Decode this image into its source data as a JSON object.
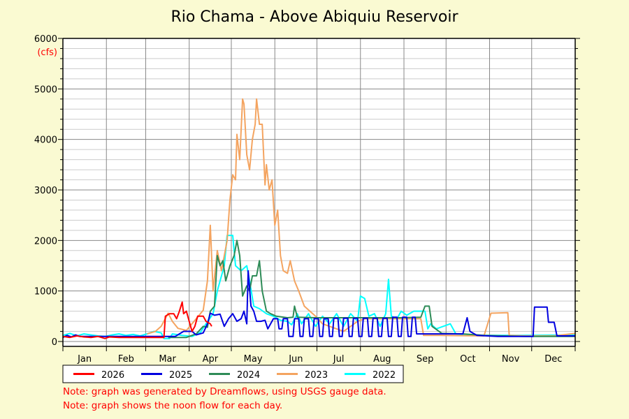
{
  "chart_data": {
    "type": "line",
    "title": "Rio Chama - Above Abiquiu Reservoir",
    "ylabel": "(cfs)",
    "xlabel": "",
    "ylim": [
      0,
      6000
    ],
    "xlim_days": [
      0,
      365
    ],
    "yticks": [
      "0",
      "1000",
      "2000",
      "3000",
      "4000",
      "5000",
      "6000"
    ],
    "ytick_values": [
      0,
      1000,
      2000,
      3000,
      4000,
      5000,
      6000
    ],
    "minor_grid_step": 200,
    "months": [
      "Jan",
      "Feb",
      "Mar",
      "Apr",
      "May",
      "Jun",
      "Jul",
      "Aug",
      "Sep",
      "Oct",
      "Nov",
      "Dec"
    ],
    "month_start_days": [
      0,
      31,
      59,
      90,
      120,
      151,
      181,
      212,
      243,
      273,
      304,
      334
    ],
    "grid": true,
    "legend_placement": "bottom",
    "series": [
      {
        "name": "2022",
        "color": "#00ffff",
        "points": [
          [
            0,
            120
          ],
          [
            5,
            160
          ],
          [
            10,
            110
          ],
          [
            15,
            150
          ],
          [
            20,
            130
          ],
          [
            25,
            110
          ],
          [
            30,
            100
          ],
          [
            35,
            130
          ],
          [
            40,
            150
          ],
          [
            45,
            120
          ],
          [
            50,
            140
          ],
          [
            55,
            110
          ],
          [
            60,
            150
          ],
          [
            65,
            200
          ],
          [
            70,
            170
          ],
          [
            72,
            60
          ],
          [
            76,
            60
          ],
          [
            78,
            150
          ],
          [
            85,
            120
          ],
          [
            92,
            100
          ],
          [
            98,
            180
          ],
          [
            102,
            350
          ],
          [
            107,
            550
          ],
          [
            110,
            1000
          ],
          [
            113,
            1300
          ],
          [
            115,
            1500
          ],
          [
            117,
            2100
          ],
          [
            121,
            2100
          ],
          [
            123,
            1500
          ],
          [
            127,
            1400
          ],
          [
            131,
            1500
          ],
          [
            133,
            1200
          ],
          [
            136,
            700
          ],
          [
            140,
            650
          ],
          [
            145,
            550
          ],
          [
            150,
            500
          ],
          [
            155,
            420
          ],
          [
            160,
            400
          ],
          [
            163,
            330
          ],
          [
            167,
            550
          ],
          [
            170,
            350
          ],
          [
            175,
            550
          ],
          [
            180,
            300
          ],
          [
            185,
            500
          ],
          [
            190,
            350
          ],
          [
            195,
            550
          ],
          [
            200,
            300
          ],
          [
            205,
            550
          ],
          [
            210,
            400
          ],
          [
            212,
            900
          ],
          [
            215,
            850
          ],
          [
            218,
            500
          ],
          [
            222,
            550
          ],
          [
            226,
            300
          ],
          [
            230,
            550
          ],
          [
            232,
            1230
          ],
          [
            234,
            500
          ],
          [
            238,
            450
          ],
          [
            241,
            600
          ],
          [
            245,
            520
          ],
          [
            250,
            600
          ],
          [
            256,
            600
          ],
          [
            258,
            600
          ],
          [
            260,
            250
          ],
          [
            262,
            350
          ],
          [
            266,
            250
          ],
          [
            276,
            350
          ],
          [
            280,
            150
          ],
          [
            300,
            120
          ],
          [
            330,
            120
          ],
          [
            365,
            130
          ]
        ]
      },
      {
        "name": "2023",
        "color": "#f4a460",
        "points": [
          [
            60,
            150
          ],
          [
            66,
            200
          ],
          [
            70,
            300
          ],
          [
            75,
            560
          ],
          [
            78,
            400
          ],
          [
            82,
            260
          ],
          [
            88,
            220
          ],
          [
            95,
            450
          ],
          [
            100,
            620
          ],
          [
            103,
            1200
          ],
          [
            105,
            2300
          ],
          [
            107,
            1000
          ],
          [
            110,
            1800
          ],
          [
            113,
            1400
          ],
          [
            117,
            2000
          ],
          [
            119,
            2800
          ],
          [
            121,
            3300
          ],
          [
            123,
            3200
          ],
          [
            124,
            4100
          ],
          [
            126,
            3600
          ],
          [
            128,
            4800
          ],
          [
            129,
            4700
          ],
          [
            131,
            3700
          ],
          [
            133,
            3400
          ],
          [
            135,
            4000
          ],
          [
            137,
            4300
          ],
          [
            138,
            4800
          ],
          [
            140,
            4300
          ],
          [
            142,
            4300
          ],
          [
            144,
            3100
          ],
          [
            145,
            3500
          ],
          [
            147,
            3000
          ],
          [
            149,
            3200
          ],
          [
            151,
            2300
          ],
          [
            153,
            2600
          ],
          [
            155,
            1700
          ],
          [
            157,
            1400
          ],
          [
            160,
            1350
          ],
          [
            162,
            1600
          ],
          [
            165,
            1200
          ],
          [
            168,
            1000
          ],
          [
            172,
            700
          ],
          [
            176,
            600
          ],
          [
            180,
            500
          ],
          [
            185,
            350
          ],
          [
            190,
            300
          ],
          [
            195,
            250
          ],
          [
            200,
            200
          ],
          [
            205,
            300
          ],
          [
            210,
            400
          ],
          [
            215,
            450
          ],
          [
            230,
            450
          ],
          [
            245,
            450
          ],
          [
            255,
            450
          ],
          [
            257,
            120
          ],
          [
            270,
            120
          ],
          [
            300,
            110
          ],
          [
            305,
            560
          ],
          [
            317,
            570
          ],
          [
            318,
            120
          ],
          [
            330,
            110
          ],
          [
            350,
            110
          ],
          [
            365,
            160
          ]
        ]
      },
      {
        "name": "2024",
        "color": "#2e8b57",
        "points": [
          [
            75,
            80
          ],
          [
            88,
            80
          ],
          [
            95,
            150
          ],
          [
            100,
            300
          ],
          [
            103,
            280
          ],
          [
            105,
            600
          ],
          [
            108,
            700
          ],
          [
            110,
            1700
          ],
          [
            112,
            1500
          ],
          [
            114,
            1600
          ],
          [
            116,
            1200
          ],
          [
            119,
            1500
          ],
          [
            122,
            1700
          ],
          [
            124,
            2000
          ],
          [
            126,
            1700
          ],
          [
            128,
            900
          ],
          [
            131,
            1100
          ],
          [
            133,
            1000
          ],
          [
            135,
            1300
          ],
          [
            138,
            1300
          ],
          [
            140,
            1600
          ],
          [
            142,
            1000
          ],
          [
            145,
            600
          ],
          [
            148,
            550
          ],
          [
            152,
            500
          ],
          [
            160,
            470
          ],
          [
            164,
            480
          ],
          [
            165,
            700
          ],
          [
            167,
            480
          ],
          [
            180,
            470
          ],
          [
            200,
            470
          ],
          [
            220,
            470
          ],
          [
            240,
            470
          ],
          [
            255,
            480
          ],
          [
            258,
            700
          ],
          [
            261,
            700
          ],
          [
            263,
            300
          ],
          [
            270,
            160
          ],
          [
            285,
            150
          ],
          [
            300,
            120
          ],
          [
            330,
            100
          ],
          [
            365,
            100
          ]
        ]
      },
      {
        "name": "2025",
        "color": "#0000e0",
        "points": [
          [
            0,
            80
          ],
          [
            3,
            120
          ],
          [
            6,
            90
          ],
          [
            9,
            130
          ],
          [
            12,
            100
          ],
          [
            20,
            100
          ],
          [
            40,
            100
          ],
          [
            60,
            100
          ],
          [
            80,
            100
          ],
          [
            83,
            150
          ],
          [
            86,
            200
          ],
          [
            92,
            200
          ],
          [
            95,
            130
          ],
          [
            100,
            170
          ],
          [
            103,
            350
          ],
          [
            105,
            560
          ],
          [
            108,
            520
          ],
          [
            112,
            540
          ],
          [
            115,
            300
          ],
          [
            118,
            450
          ],
          [
            121,
            550
          ],
          [
            124,
            400
          ],
          [
            127,
            450
          ],
          [
            129,
            600
          ],
          [
            131,
            350
          ],
          [
            132,
            1400
          ],
          [
            134,
            700
          ],
          [
            136,
            600
          ],
          [
            138,
            400
          ],
          [
            141,
            400
          ],
          [
            144,
            420
          ],
          [
            146,
            250
          ],
          [
            150,
            450
          ],
          [
            153,
            450
          ],
          [
            154,
            250
          ],
          [
            156,
            250
          ],
          [
            157,
            450
          ],
          [
            160,
            450
          ],
          [
            161,
            100
          ],
          [
            164,
            100
          ],
          [
            165,
            450
          ],
          [
            168,
            450
          ],
          [
            169,
            100
          ],
          [
            171,
            100
          ],
          [
            172,
            450
          ],
          [
            175,
            450
          ],
          [
            176,
            100
          ],
          [
            178,
            100
          ],
          [
            179,
            450
          ],
          [
            182,
            450
          ],
          [
            183,
            100
          ],
          [
            185,
            100
          ],
          [
            186,
            450
          ],
          [
            189,
            450
          ],
          [
            190,
            100
          ],
          [
            192,
            100
          ],
          [
            193,
            460
          ],
          [
            196,
            460
          ],
          [
            197,
            100
          ],
          [
            199,
            100
          ],
          [
            200,
            460
          ],
          [
            203,
            460
          ],
          [
            204,
            100
          ],
          [
            206,
            100
          ],
          [
            207,
            460
          ],
          [
            210,
            460
          ],
          [
            211,
            100
          ],
          [
            213,
            100
          ],
          [
            214,
            460
          ],
          [
            217,
            460
          ],
          [
            218,
            100
          ],
          [
            220,
            100
          ],
          [
            221,
            460
          ],
          [
            224,
            460
          ],
          [
            225,
            100
          ],
          [
            227,
            100
          ],
          [
            228,
            460
          ],
          [
            231,
            460
          ],
          [
            232,
            100
          ],
          [
            234,
            100
          ],
          [
            235,
            480
          ],
          [
            238,
            480
          ],
          [
            239,
            100
          ],
          [
            241,
            100
          ],
          [
            242,
            480
          ],
          [
            245,
            480
          ],
          [
            246,
            100
          ],
          [
            248,
            100
          ],
          [
            249,
            480
          ],
          [
            251,
            480
          ],
          [
            252,
            150
          ],
          [
            270,
            150
          ],
          [
            285,
            150
          ],
          [
            288,
            470
          ],
          [
            290,
            200
          ],
          [
            295,
            120
          ],
          [
            310,
            100
          ],
          [
            330,
            100
          ],
          [
            335,
            100
          ],
          [
            336,
            680
          ],
          [
            345,
            680
          ],
          [
            346,
            380
          ],
          [
            350,
            380
          ],
          [
            352,
            110
          ],
          [
            365,
            110
          ]
        ]
      },
      {
        "name": "2026",
        "color": "#ff0000",
        "points": [
          [
            0,
            100
          ],
          [
            5,
            80
          ],
          [
            10,
            110
          ],
          [
            15,
            90
          ],
          [
            20,
            80
          ],
          [
            25,
            100
          ],
          [
            30,
            60
          ],
          [
            33,
            90
          ],
          [
            40,
            80
          ],
          [
            50,
            80
          ],
          [
            60,
            80
          ],
          [
            70,
            80
          ],
          [
            72,
            80
          ],
          [
            73,
            500
          ],
          [
            76,
            550
          ],
          [
            79,
            550
          ],
          [
            81,
            450
          ],
          [
            83,
            600
          ],
          [
            85,
            780
          ],
          [
            86,
            550
          ],
          [
            88,
            600
          ],
          [
            90,
            400
          ],
          [
            92,
            200
          ],
          [
            94,
            300
          ],
          [
            96,
            500
          ],
          [
            100,
            500
          ],
          [
            102,
            400
          ],
          [
            105,
            350
          ],
          [
            106,
            300
          ]
        ]
      }
    ]
  },
  "notes": [
    "Note: graph was generated by Dreamflows, using USGS gauge data.",
    "Note: graph shows the noon flow for each day."
  ]
}
